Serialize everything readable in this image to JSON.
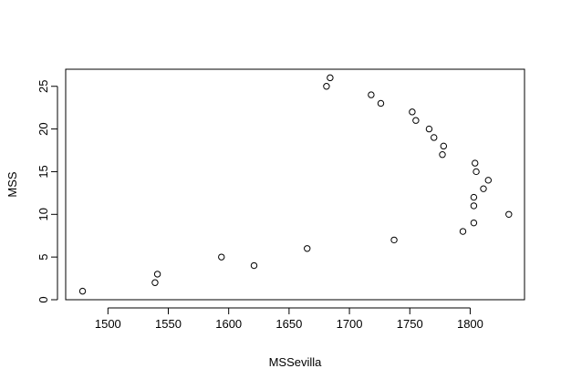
{
  "chart_data": {
    "type": "scatter",
    "title": "",
    "xlabel": "MSSevilla",
    "ylabel": "MSS",
    "xlim": [
      1465,
      1845
    ],
    "ylim": [
      0,
      27
    ],
    "xticks": [
      1500,
      1550,
      1600,
      1650,
      1700,
      1750,
      1800
    ],
    "yticks": [
      0,
      5,
      10,
      15,
      20,
      25
    ],
    "grid": false,
    "marker": "open-circle",
    "points": [
      {
        "x": 1479,
        "y": 1
      },
      {
        "x": 1539,
        "y": 2
      },
      {
        "x": 1541,
        "y": 3
      },
      {
        "x": 1594,
        "y": 5
      },
      {
        "x": 1621,
        "y": 4
      },
      {
        "x": 1665,
        "y": 6
      },
      {
        "x": 1681,
        "y": 25
      },
      {
        "x": 1684,
        "y": 26
      },
      {
        "x": 1718,
        "y": 24
      },
      {
        "x": 1726,
        "y": 23
      },
      {
        "x": 1737,
        "y": 7
      },
      {
        "x": 1752,
        "y": 22
      },
      {
        "x": 1755,
        "y": 21
      },
      {
        "x": 1766,
        "y": 20
      },
      {
        "x": 1770,
        "y": 19
      },
      {
        "x": 1777,
        "y": 17
      },
      {
        "x": 1778,
        "y": 18
      },
      {
        "x": 1794,
        "y": 8
      },
      {
        "x": 1803,
        "y": 9
      },
      {
        "x": 1803,
        "y": 11
      },
      {
        "x": 1803,
        "y": 12
      },
      {
        "x": 1804,
        "y": 16
      },
      {
        "x": 1805,
        "y": 15
      },
      {
        "x": 1811,
        "y": 13
      },
      {
        "x": 1815,
        "y": 14
      },
      {
        "x": 1832,
        "y": 10
      }
    ]
  }
}
